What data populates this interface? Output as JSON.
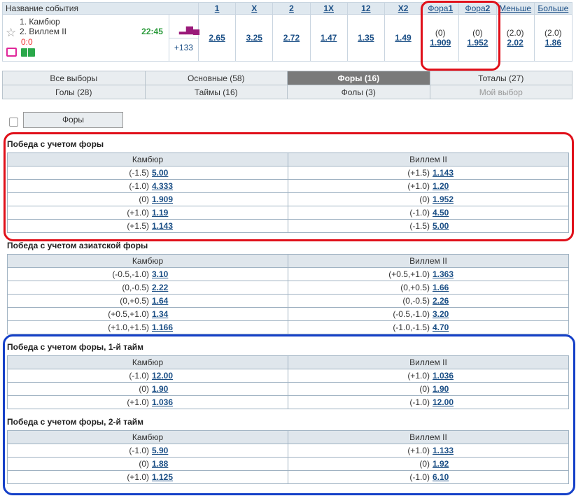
{
  "event": {
    "header_title": "Название события",
    "cols": [
      "1",
      "X",
      "2",
      "1X",
      "12",
      "X2"
    ],
    "fora1_prefix": "Фора",
    "fora1_num": "1",
    "fora2_prefix": "Фора",
    "fora2_num": "2",
    "less": "Меньше",
    "more": "Больше",
    "team1": "1. Камбюр",
    "team2": "2. Виллем II",
    "score": "0:0",
    "time": "22:45",
    "more_markets": "+133",
    "odds": [
      "2.65",
      "3.25",
      "2.72",
      "1.47",
      "1.35",
      "1.49"
    ],
    "fora1": {
      "hc": "(0)",
      "odd": "1.909"
    },
    "fora2": {
      "hc": "(0)",
      "odd": "1.952"
    },
    "under": {
      "hc": "(2.0)",
      "odd": "2.02"
    },
    "over": {
      "hc": "(2.0)",
      "odd": "1.86"
    },
    "icons": [
      "star-icon",
      "bar-chart-icon",
      "tv-icon",
      "football-field-icon"
    ]
  },
  "tabs": [
    [
      "Все выборы",
      "Основные (58)",
      "Форы (16)",
      "Тоталы (27)"
    ],
    [
      "Голы (28)",
      "Таймы (16)",
      "Фолы (3)",
      "Мой выбор"
    ]
  ],
  "filter_button": "Форы",
  "markets": [
    {
      "title": "Победа с учетом форы",
      "home": "Камбюр",
      "away": "Виллем II",
      "rows": [
        [
          [
            "(-1.5)",
            "5.00"
          ],
          [
            "(+1.5)",
            "1.143"
          ]
        ],
        [
          [
            "(-1.0)",
            "4.333"
          ],
          [
            "(+1.0)",
            "1.20"
          ]
        ],
        [
          [
            "(0)",
            "1.909"
          ],
          [
            "(0)",
            "1.952"
          ]
        ],
        [
          [
            "(+1.0)",
            "1.19"
          ],
          [
            "(-1.0)",
            "4.50"
          ]
        ],
        [
          [
            "(+1.5)",
            "1.143"
          ],
          [
            "(-1.5)",
            "5.00"
          ]
        ]
      ]
    },
    {
      "title": "Победа с учетом азиатской форы",
      "home": "Камбюр",
      "away": "Виллем II",
      "rows": [
        [
          [
            "(-0.5,-1.0)",
            "3.10"
          ],
          [
            "(+0.5,+1.0)",
            "1.363"
          ]
        ],
        [
          [
            "(0,-0.5)",
            "2.22"
          ],
          [
            "(0,+0.5)",
            "1.66"
          ]
        ],
        [
          [
            "(0,+0.5)",
            "1.64"
          ],
          [
            "(0,-0.5)",
            "2.26"
          ]
        ],
        [
          [
            "(+0.5,+1.0)",
            "1.34"
          ],
          [
            "(-0.5,-1.0)",
            "3.20"
          ]
        ],
        [
          [
            "(+1.0,+1.5)",
            "1.166"
          ],
          [
            "(-1.0,-1.5)",
            "4.70"
          ]
        ]
      ]
    },
    {
      "title": "Победа с учетом форы, 1-й тайм",
      "home": "Камбюр",
      "away": "Виллем II",
      "rows": [
        [
          [
            "(-1.0)",
            "12.00"
          ],
          [
            "(+1.0)",
            "1.036"
          ]
        ],
        [
          [
            "(0)",
            "1.90"
          ],
          [
            "(0)",
            "1.90"
          ]
        ],
        [
          [
            "(+1.0)",
            "1.036"
          ],
          [
            "(-1.0)",
            "12.00"
          ]
        ]
      ]
    },
    {
      "title": "Победа с учетом форы, 2-й тайм",
      "home": "Камбюр",
      "away": "Виллем II",
      "rows": [
        [
          [
            "(-1.0)",
            "5.90"
          ],
          [
            "(+1.0)",
            "1.133"
          ]
        ],
        [
          [
            "(0)",
            "1.88"
          ],
          [
            "(0)",
            "1.92"
          ]
        ],
        [
          [
            "(+1.0)",
            "1.125"
          ],
          [
            "(-1.0)",
            "6.10"
          ]
        ]
      ]
    }
  ],
  "colors": {
    "red_highlight": "#e0101a",
    "blue_highlight": "#1540c8",
    "active_tab": "#7a7a7a",
    "link": "#1b4f86"
  }
}
